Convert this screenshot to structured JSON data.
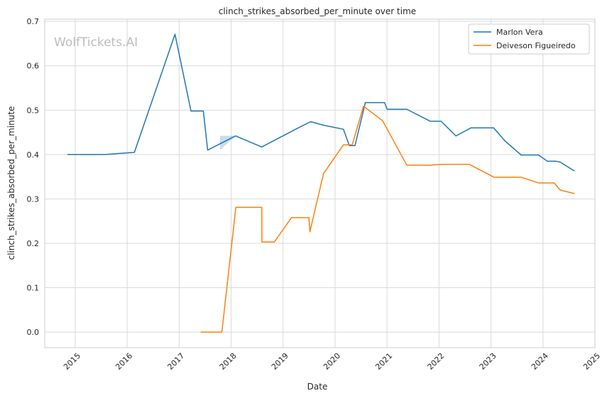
{
  "chart_data": {
    "type": "line",
    "title": "clinch_strikes_absorbed_per_minute over time",
    "xlabel": "Date",
    "ylabel": "clinch_strikes_absorbed_per_minute",
    "xlim": [
      "2014-06-01",
      "2025-01-01"
    ],
    "ylim": [
      -0.035,
      0.705
    ],
    "x_ticks": [
      "2015",
      "2016",
      "2017",
      "2018",
      "2019",
      "2020",
      "2021",
      "2022",
      "2023",
      "2024",
      "2025"
    ],
    "y_ticks": [
      0.0,
      0.1,
      0.2,
      0.3,
      0.4,
      0.5,
      0.6,
      0.7
    ],
    "y_tick_labels": [
      "0.0",
      "0.1",
      "0.2",
      "0.3",
      "0.4",
      "0.5",
      "0.6",
      "0.7"
    ],
    "grid": true,
    "legend_position": "top-right",
    "watermark": "WolfTickets.AI",
    "series": [
      {
        "name": "Marlon Vera",
        "color": "#1f77b4",
        "x": [
          "2014-11-08",
          "2015-08-01",
          "2016-02-21",
          "2016-12-03",
          "2017-03-25",
          "2017-06-20",
          "2017-07-20",
          "2018-02-01",
          "2018-08-04",
          "2018-12-01",
          "2019-03-30",
          "2019-07-13",
          "2019-10-12",
          "2020-02-29",
          "2020-04-10",
          "2020-05-20",
          "2020-08-01",
          "2020-12-15",
          "2021-01-01",
          "2021-05-20",
          "2021-11-01",
          "2022-01-15",
          "2022-04-30",
          "2022-08-13",
          "2023-01-20",
          "2023-04-08",
          "2023-08-01",
          "2023-12-01",
          "2024-02-01",
          "2024-04-01",
          "2024-05-01",
          "2024-08-10"
        ],
        "y": [
          0.4,
          0.4,
          0.405,
          0.671,
          0.498,
          0.498,
          0.41,
          0.442,
          0.417,
          0.437,
          0.457,
          0.474,
          0.466,
          0.457,
          0.42,
          0.42,
          0.517,
          0.517,
          0.502,
          0.502,
          0.475,
          0.475,
          0.442,
          0.46,
          0.46,
          0.431,
          0.399,
          0.399,
          0.385,
          0.385,
          0.383,
          0.363
        ]
      },
      {
        "name": "Deiveson Figueiredo",
        "color": "#ff7f0e",
        "x": [
          "2017-06-01",
          "2017-10-28",
          "2018-02-03",
          "2018-08-04",
          "2018-08-05",
          "2018-11-01",
          "2019-03-01",
          "2019-07-01",
          "2019-07-08",
          "2019-10-12",
          "2020-02-29",
          "2020-05-01",
          "2020-07-19",
          "2020-12-01",
          "2021-05-20",
          "2021-11-01",
          "2022-01-22",
          "2022-08-01",
          "2023-01-21",
          "2023-08-01",
          "2023-12-01",
          "2024-03-20",
          "2024-05-01",
          "2024-08-10"
        ],
        "y": [
          0.0,
          0.0,
          0.281,
          0.281,
          0.203,
          0.203,
          0.258,
          0.258,
          0.226,
          0.357,
          0.422,
          0.422,
          0.509,
          0.476,
          0.376,
          0.376,
          0.378,
          0.378,
          0.349,
          0.349,
          0.336,
          0.336,
          0.32,
          0.312
        ]
      }
    ]
  }
}
